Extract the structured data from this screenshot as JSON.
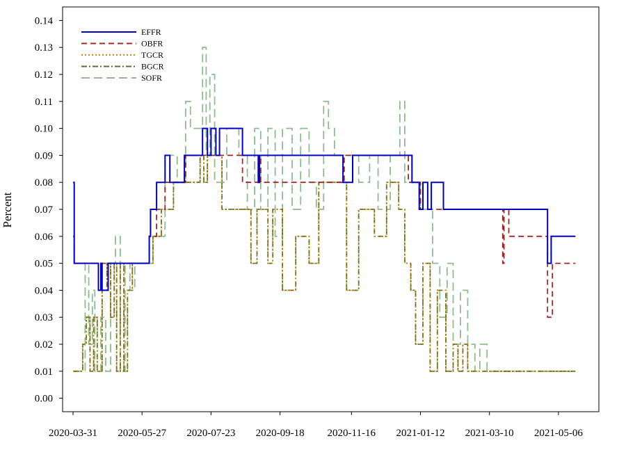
{
  "chart_data": {
    "type": "line",
    "title": "",
    "xlabel": "",
    "ylabel": "Percent",
    "x_start": "2020-03-31",
    "x_end": "2021-05-20",
    "x_ticks": [
      "2020-03-31",
      "2020-05-27",
      "2020-07-23",
      "2020-09-18",
      "2020-11-16",
      "2021-01-12",
      "2021-03-10",
      "2021-05-06"
    ],
    "y_ticks": [
      "0.00",
      "0.01",
      "0.02",
      "0.03",
      "0.04",
      "0.05",
      "0.06",
      "0.07",
      "0.08",
      "0.09",
      "0.10",
      "0.11",
      "0.12",
      "0.13",
      "0.14"
    ],
    "ylim": [
      -0.005,
      0.145
    ],
    "grid": false,
    "legend_position": "top-left",
    "series": [
      {
        "name": "EFFR",
        "color": "#0000cc",
        "dash": "",
        "points": [
          [
            "2020-03-31",
            0.08
          ],
          [
            "2020-04-01",
            0.05
          ],
          [
            "2020-04-20",
            0.05
          ],
          [
            "2020-04-21",
            0.04
          ],
          [
            "2020-04-23",
            0.05
          ],
          [
            "2020-04-24",
            0.04
          ],
          [
            "2020-04-29",
            0.05
          ],
          [
            "2020-06-01",
            0.05
          ],
          [
            "2020-06-02",
            0.06
          ],
          [
            "2020-06-03",
            0.07
          ],
          [
            "2020-06-08",
            0.08
          ],
          [
            "2020-06-15",
            0.09
          ],
          [
            "2020-06-19",
            0.08
          ],
          [
            "2020-07-01",
            0.09
          ],
          [
            "2020-07-16",
            0.1
          ],
          [
            "2020-07-20",
            0.09
          ],
          [
            "2020-07-23",
            0.1
          ],
          [
            "2020-07-27",
            0.09
          ],
          [
            "2020-07-30",
            0.1
          ],
          [
            "2020-08-17",
            0.1
          ],
          [
            "2020-08-18",
            0.09
          ],
          [
            "2020-08-31",
            0.08
          ],
          [
            "2020-09-01",
            0.09
          ],
          [
            "2020-11-08",
            0.09
          ],
          [
            "2020-11-09",
            0.08
          ],
          [
            "2020-11-16",
            0.08
          ],
          [
            "2020-11-17",
            0.09
          ],
          [
            "2021-01-04",
            0.09
          ],
          [
            "2021-01-05",
            0.08
          ],
          [
            "2021-01-10",
            0.08
          ],
          [
            "2021-01-11",
            0.07
          ],
          [
            "2021-01-14",
            0.08
          ],
          [
            "2021-01-18",
            0.07
          ],
          [
            "2021-01-21",
            0.08
          ],
          [
            "2021-01-30",
            0.08
          ],
          [
            "2021-01-31",
            0.07
          ],
          [
            "2021-04-26",
            0.07
          ],
          [
            "2021-04-27",
            0.05
          ],
          [
            "2021-04-30",
            0.06
          ],
          [
            "2021-05-20",
            0.06
          ]
        ]
      },
      {
        "name": "OBFR",
        "color": "#a02828",
        "dash": "8,5",
        "points": [
          [
            "2020-03-31",
            0.06
          ],
          [
            "2020-04-01",
            0.05
          ],
          [
            "2020-06-01",
            0.05
          ],
          [
            "2020-06-02",
            0.06
          ],
          [
            "2020-06-08",
            0.07
          ],
          [
            "2020-06-15",
            0.08
          ],
          [
            "2020-07-01",
            0.08
          ],
          [
            "2020-07-02",
            0.09
          ],
          [
            "2020-08-17",
            0.09
          ],
          [
            "2020-08-18",
            0.08
          ],
          [
            "2020-09-01",
            0.09
          ],
          [
            "2020-09-02",
            0.08
          ],
          [
            "2020-11-09",
            0.08
          ],
          [
            "2020-11-10",
            0.09
          ],
          [
            "2021-01-01",
            0.09
          ],
          [
            "2021-01-02",
            0.08
          ],
          [
            "2021-01-11",
            0.08
          ],
          [
            "2021-01-12",
            0.07
          ],
          [
            "2021-03-20",
            0.07
          ],
          [
            "2021-03-21",
            0.05
          ],
          [
            "2021-03-22",
            0.07
          ],
          [
            "2021-03-26",
            0.06
          ],
          [
            "2021-04-26",
            0.06
          ],
          [
            "2021-04-27",
            0.03
          ],
          [
            "2021-05-01",
            0.05
          ],
          [
            "2021-05-20",
            0.05
          ]
        ]
      },
      {
        "name": "TGCR",
        "color": "#c8860a",
        "dash": "2,3",
        "points": [
          [
            "2020-03-31",
            0.01
          ],
          [
            "2020-04-08",
            0.02
          ],
          [
            "2020-04-11",
            0.03
          ],
          [
            "2020-04-14",
            0.01
          ],
          [
            "2020-04-17",
            0.03
          ],
          [
            "2020-04-20",
            0.01
          ],
          [
            "2020-04-24",
            0.04
          ],
          [
            "2020-04-28",
            0.05
          ],
          [
            "2020-05-01",
            0.03
          ],
          [
            "2020-05-04",
            0.05
          ],
          [
            "2020-05-06",
            0.01
          ],
          [
            "2020-05-09",
            0.05
          ],
          [
            "2020-05-12",
            0.01
          ],
          [
            "2020-05-15",
            0.04
          ],
          [
            "2020-05-19",
            0.05
          ],
          [
            "2020-06-01",
            0.05
          ],
          [
            "2020-06-05",
            0.06
          ],
          [
            "2020-06-12",
            0.07
          ],
          [
            "2020-06-22",
            0.08
          ],
          [
            "2020-07-10",
            0.08
          ],
          [
            "2020-07-14",
            0.09
          ],
          [
            "2020-07-17",
            0.08
          ],
          [
            "2020-07-20",
            0.09
          ],
          [
            "2020-08-01",
            0.07
          ],
          [
            "2020-08-20",
            0.07
          ],
          [
            "2020-08-25",
            0.05
          ],
          [
            "2020-08-30",
            0.07
          ],
          [
            "2020-09-08",
            0.05
          ],
          [
            "2020-09-12",
            0.07
          ],
          [
            "2020-09-20",
            0.04
          ],
          [
            "2020-10-01",
            0.06
          ],
          [
            "2020-10-12",
            0.05
          ],
          [
            "2020-10-20",
            0.08
          ],
          [
            "2020-11-05",
            0.08
          ],
          [
            "2020-11-12",
            0.04
          ],
          [
            "2020-11-22",
            0.07
          ],
          [
            "2020-12-05",
            0.06
          ],
          [
            "2020-12-15",
            0.08
          ],
          [
            "2020-12-25",
            0.07
          ],
          [
            "2020-12-30",
            0.05
          ],
          [
            "2021-01-04",
            0.04
          ],
          [
            "2021-01-08",
            0.02
          ],
          [
            "2021-01-14",
            0.05
          ],
          [
            "2021-01-20",
            0.01
          ],
          [
            "2021-01-26",
            0.04
          ],
          [
            "2021-02-02",
            0.01
          ],
          [
            "2021-02-08",
            0.02
          ],
          [
            "2021-02-12",
            0.01
          ],
          [
            "2021-02-16",
            0.02
          ],
          [
            "2021-02-20",
            0.01
          ],
          [
            "2021-05-20",
            0.01
          ]
        ]
      },
      {
        "name": "BGCR",
        "color": "#556b2f",
        "dash": "8,3,2,3",
        "points": [
          [
            "2020-03-31",
            0.01
          ],
          [
            "2020-04-08",
            0.02
          ],
          [
            "2020-04-11",
            0.03
          ],
          [
            "2020-04-14",
            0.01
          ],
          [
            "2020-04-17",
            0.03
          ],
          [
            "2020-04-20",
            0.01
          ],
          [
            "2020-04-24",
            0.04
          ],
          [
            "2020-04-28",
            0.05
          ],
          [
            "2020-05-01",
            0.03
          ],
          [
            "2020-05-04",
            0.05
          ],
          [
            "2020-05-06",
            0.01
          ],
          [
            "2020-05-09",
            0.05
          ],
          [
            "2020-05-12",
            0.01
          ],
          [
            "2020-05-15",
            0.04
          ],
          [
            "2020-05-19",
            0.05
          ],
          [
            "2020-06-01",
            0.05
          ],
          [
            "2020-06-05",
            0.06
          ],
          [
            "2020-06-12",
            0.07
          ],
          [
            "2020-06-22",
            0.08
          ],
          [
            "2020-07-10",
            0.08
          ],
          [
            "2020-07-14",
            0.09
          ],
          [
            "2020-07-17",
            0.08
          ],
          [
            "2020-07-20",
            0.09
          ],
          [
            "2020-08-01",
            0.07
          ],
          [
            "2020-08-20",
            0.07
          ],
          [
            "2020-08-25",
            0.05
          ],
          [
            "2020-08-30",
            0.07
          ],
          [
            "2020-09-08",
            0.05
          ],
          [
            "2020-09-12",
            0.07
          ],
          [
            "2020-09-20",
            0.04
          ],
          [
            "2020-10-01",
            0.06
          ],
          [
            "2020-10-12",
            0.05
          ],
          [
            "2020-10-20",
            0.08
          ],
          [
            "2020-11-05",
            0.08
          ],
          [
            "2020-11-12",
            0.04
          ],
          [
            "2020-11-22",
            0.07
          ],
          [
            "2020-12-05",
            0.06
          ],
          [
            "2020-12-15",
            0.08
          ],
          [
            "2020-12-25",
            0.07
          ],
          [
            "2020-12-30",
            0.05
          ],
          [
            "2021-01-04",
            0.04
          ],
          [
            "2021-01-08",
            0.02
          ],
          [
            "2021-01-14",
            0.05
          ],
          [
            "2021-01-20",
            0.01
          ],
          [
            "2021-01-26",
            0.04
          ],
          [
            "2021-02-02",
            0.01
          ],
          [
            "2021-02-08",
            0.02
          ],
          [
            "2021-02-12",
            0.01
          ],
          [
            "2021-02-16",
            0.02
          ],
          [
            "2021-02-20",
            0.01
          ],
          [
            "2021-05-20",
            0.01
          ]
        ]
      },
      {
        "name": "SOFR",
        "color": "#8fbc8f",
        "dash": "12,6",
        "points": [
          [
            "2020-03-31",
            0.01
          ],
          [
            "2020-04-08",
            0.01
          ],
          [
            "2020-04-10",
            0.05
          ],
          [
            "2020-04-13",
            0.02
          ],
          [
            "2020-04-16",
            0.04
          ],
          [
            "2020-04-18",
            0.01
          ],
          [
            "2020-04-23",
            0.03
          ],
          [
            "2020-04-27",
            0.01
          ],
          [
            "2020-05-01",
            0.05
          ],
          [
            "2020-05-05",
            0.06
          ],
          [
            "2020-05-09",
            0.01
          ],
          [
            "2020-05-13",
            0.05
          ],
          [
            "2020-05-17",
            0.04
          ],
          [
            "2020-05-21",
            0.05
          ],
          [
            "2020-06-05",
            0.06
          ],
          [
            "2020-06-15",
            0.09
          ],
          [
            "2020-06-25",
            0.08
          ],
          [
            "2020-07-02",
            0.11
          ],
          [
            "2020-07-06",
            0.1
          ],
          [
            "2020-07-12",
            0.1
          ],
          [
            "2020-07-16",
            0.13
          ],
          [
            "2020-07-19",
            0.09
          ],
          [
            "2020-07-22",
            0.12
          ],
          [
            "2020-07-26",
            0.08
          ],
          [
            "2020-08-05",
            0.1
          ],
          [
            "2020-08-15",
            0.09
          ],
          [
            "2020-08-22",
            0.07
          ],
          [
            "2020-08-28",
            0.1
          ],
          [
            "2020-09-02",
            0.07
          ],
          [
            "2020-09-08",
            0.1
          ],
          [
            "2020-09-14",
            0.06
          ],
          [
            "2020-09-20",
            0.1
          ],
          [
            "2020-09-28",
            0.07
          ],
          [
            "2020-10-05",
            0.1
          ],
          [
            "2020-10-12",
            0.08
          ],
          [
            "2020-10-18",
            0.07
          ],
          [
            "2020-10-24",
            0.11
          ],
          [
            "2020-10-28",
            0.1
          ],
          [
            "2020-11-02",
            0.09
          ],
          [
            "2020-11-12",
            0.09
          ],
          [
            "2020-11-22",
            0.08
          ],
          [
            "2020-12-01",
            0.09
          ],
          [
            "2020-12-08",
            0.07
          ],
          [
            "2020-12-18",
            0.09
          ],
          [
            "2020-12-26",
            0.11
          ],
          [
            "2020-12-30",
            0.08
          ],
          [
            "2021-01-06",
            0.08
          ],
          [
            "2021-01-12",
            0.07
          ],
          [
            "2021-01-18",
            0.07
          ],
          [
            "2021-01-22",
            0.05
          ],
          [
            "2021-01-28",
            0.03
          ],
          [
            "2021-02-03",
            0.05
          ],
          [
            "2021-02-08",
            0.02
          ],
          [
            "2021-02-14",
            0.04
          ],
          [
            "2021-02-20",
            0.02
          ],
          [
            "2021-02-26",
            0.01
          ],
          [
            "2021-03-02",
            0.02
          ],
          [
            "2021-03-08",
            0.01
          ],
          [
            "2021-05-20",
            0.01
          ]
        ]
      }
    ]
  }
}
